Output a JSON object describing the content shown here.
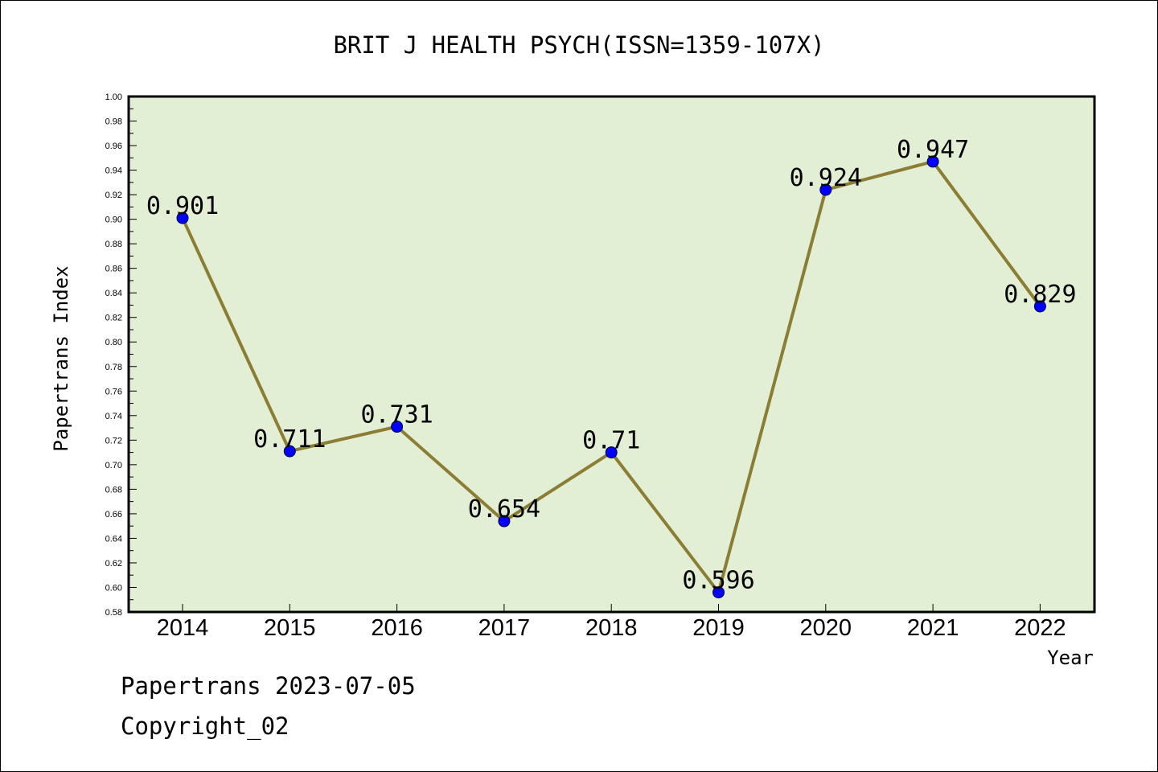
{
  "chart_data": {
    "type": "line",
    "title": "BRIT J HEALTH PSYCH(ISSN=1359-107X)",
    "xlabel": "Year",
    "ylabel": "Papertrans Index",
    "categories": [
      "2014",
      "2015",
      "2016",
      "2017",
      "2018",
      "2019",
      "2020",
      "2021",
      "2022"
    ],
    "series": [
      {
        "values": [
          0.901,
          0.711,
          0.731,
          0.654,
          0.71,
          0.596,
          0.924,
          0.947,
          0.829
        ],
        "labels": [
          "0.901",
          "0.711",
          "0.731",
          "0.654",
          "0.71",
          "0.596",
          "0.924",
          "0.947",
          "0.829"
        ]
      }
    ],
    "ylim": [
      0.58,
      1.0
    ],
    "yticks": [
      "0.58",
      "0.60",
      "0.62",
      "0.64",
      "0.66",
      "0.68",
      "0.70",
      "0.72",
      "0.74",
      "0.76",
      "0.78",
      "0.80",
      "0.82",
      "0.84",
      "0.86",
      "0.88",
      "0.90",
      "0.92",
      "0.94",
      "0.96",
      "0.98",
      "1.00"
    ],
    "grid": false,
    "legend": "none",
    "colors": {
      "plot_background": "#e2efd5",
      "line": "#8b7d34",
      "marker": "#0000ff"
    }
  },
  "footer": {
    "line1": "Papertrans 2023-07-05",
    "line2": "Copyright_02"
  }
}
